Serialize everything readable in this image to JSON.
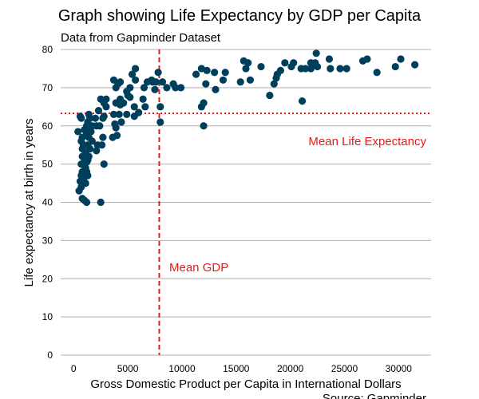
{
  "chart_data": {
    "type": "scatter",
    "title": "Graph showing Life Expectancy by GDP per Capita",
    "subtitle": "Data from Gapminder Dataset",
    "xlabel": "Gross Domestic Product per Capita in International Dollars",
    "ylabel": "Life expectancy at birth in years",
    "source": "Source: Gapminder",
    "xlim": [
      -1200,
      33000
    ],
    "ylim": [
      0,
      80
    ],
    "x_ticks": [
      0,
      5000,
      10000,
      15000,
      20000,
      25000,
      30000
    ],
    "y_ticks": [
      0,
      10,
      20,
      30,
      40,
      50,
      60,
      70,
      80
    ],
    "grid": "horizontal",
    "point_color": "#003f5c",
    "reference_color": "#e41a1c",
    "reference_lines": {
      "mean_gdp": {
        "value": 7900,
        "label": "Mean GDP"
      },
      "mean_life_expectancy": {
        "value": 63.3,
        "label": "Mean Life Expectancy"
      }
    },
    "points": [
      [
        400,
        58.5
      ],
      [
        600,
        62.5
      ],
      [
        700,
        62
      ],
      [
        700,
        56
      ],
      [
        800,
        54
      ],
      [
        800,
        52
      ],
      [
        700,
        50
      ],
      [
        800,
        48
      ],
      [
        700,
        47
      ],
      [
        600,
        45.5
      ],
      [
        700,
        44
      ],
      [
        500,
        43
      ],
      [
        800,
        41
      ],
      [
        1000,
        40.5
      ],
      [
        1200,
        40
      ],
      [
        900,
        46
      ],
      [
        1000,
        47
      ],
      [
        1100,
        49
      ],
      [
        1200,
        50.5
      ],
      [
        1000,
        51.5
      ],
      [
        1100,
        53
      ],
      [
        1300,
        55
      ],
      [
        1400,
        57
      ],
      [
        1500,
        59
      ],
      [
        1200,
        60
      ],
      [
        1300,
        61
      ],
      [
        1600,
        58.5
      ],
      [
        1700,
        60
      ],
      [
        1500,
        62
      ],
      [
        1400,
        63
      ],
      [
        1700,
        56
      ],
      [
        1500,
        54
      ],
      [
        1400,
        52
      ],
      [
        1300,
        51
      ],
      [
        1200,
        48
      ],
      [
        1100,
        45
      ],
      [
        1300,
        47
      ],
      [
        900,
        55
      ],
      [
        800,
        57
      ],
      [
        1000,
        59
      ],
      [
        1200,
        58
      ],
      [
        2100,
        53.5
      ],
      [
        2200,
        55
      ],
      [
        2600,
        55
      ],
      [
        2700,
        57
      ],
      [
        2400,
        60
      ],
      [
        2100,
        60
      ],
      [
        2000,
        62
      ],
      [
        2300,
        64
      ],
      [
        2700,
        62
      ],
      [
        2800,
        62.5
      ],
      [
        3000,
        65
      ],
      [
        2800,
        66
      ],
      [
        3000,
        67
      ],
      [
        2500,
        67
      ],
      [
        2500,
        40
      ],
      [
        2800,
        50
      ],
      [
        3600,
        57
      ],
      [
        4000,
        57.5
      ],
      [
        3900,
        59.5
      ],
      [
        3800,
        60.5
      ],
      [
        4400,
        61
      ],
      [
        4200,
        63
      ],
      [
        3700,
        63
      ],
      [
        3900,
        66
      ],
      [
        4300,
        67
      ],
      [
        4600,
        66
      ],
      [
        4300,
        65.5
      ],
      [
        3900,
        70
      ],
      [
        4100,
        71
      ],
      [
        3700,
        72
      ],
      [
        4300,
        71.5
      ],
      [
        5000,
        68
      ],
      [
        4900,
        69
      ],
      [
        5200,
        67.5
      ],
      [
        5600,
        65
      ],
      [
        5600,
        62.5
      ],
      [
        4900,
        63
      ],
      [
        6000,
        63.5
      ],
      [
        6600,
        65
      ],
      [
        6400,
        67
      ],
      [
        6500,
        70
      ],
      [
        6800,
        71.5
      ],
      [
        7300,
        71.5
      ],
      [
        7600,
        71.5
      ],
      [
        7500,
        69.5
      ],
      [
        7800,
        74
      ],
      [
        7200,
        72
      ],
      [
        8200,
        71.5
      ],
      [
        8600,
        70
      ],
      [
        9200,
        71
      ],
      [
        9400,
        70
      ],
      [
        9900,
        70
      ],
      [
        5700,
        72
      ],
      [
        5400,
        73.5
      ],
      [
        5700,
        75
      ],
      [
        5200,
        70
      ],
      [
        8000,
        65
      ],
      [
        8000,
        61
      ],
      [
        11300,
        73.5
      ],
      [
        11800,
        75
      ],
      [
        12300,
        74.5
      ],
      [
        13000,
        74
      ],
      [
        12200,
        71
      ],
      [
        13800,
        72
      ],
      [
        14000,
        74
      ],
      [
        13100,
        69.5
      ],
      [
        11800,
        65
      ],
      [
        12000,
        66
      ],
      [
        12000,
        60
      ],
      [
        15700,
        77
      ],
      [
        16100,
        76.5
      ],
      [
        15900,
        75
      ],
      [
        15400,
        71.5
      ],
      [
        16300,
        72
      ],
      [
        17300,
        75.5
      ],
      [
        18800,
        73.5
      ],
      [
        18500,
        71
      ],
      [
        18700,
        72.5
      ],
      [
        19100,
        74.5
      ],
      [
        19500,
        76.5
      ],
      [
        20100,
        75.5
      ],
      [
        20300,
        76.5
      ],
      [
        21000,
        75
      ],
      [
        21400,
        75
      ],
      [
        21900,
        76.5
      ],
      [
        21900,
        75
      ],
      [
        22400,
        79
      ],
      [
        22300,
        76.5
      ],
      [
        22500,
        75.5
      ],
      [
        23600,
        77.5
      ],
      [
        23700,
        75
      ],
      [
        24600,
        75
      ],
      [
        25200,
        75
      ],
      [
        26700,
        77
      ],
      [
        27100,
        77.5
      ],
      [
        28000,
        74
      ],
      [
        29700,
        75.5
      ],
      [
        30200,
        77.5
      ],
      [
        31500,
        76
      ],
      [
        22100,
        76
      ],
      [
        21100,
        66.5
      ],
      [
        18100,
        68
      ]
    ]
  }
}
